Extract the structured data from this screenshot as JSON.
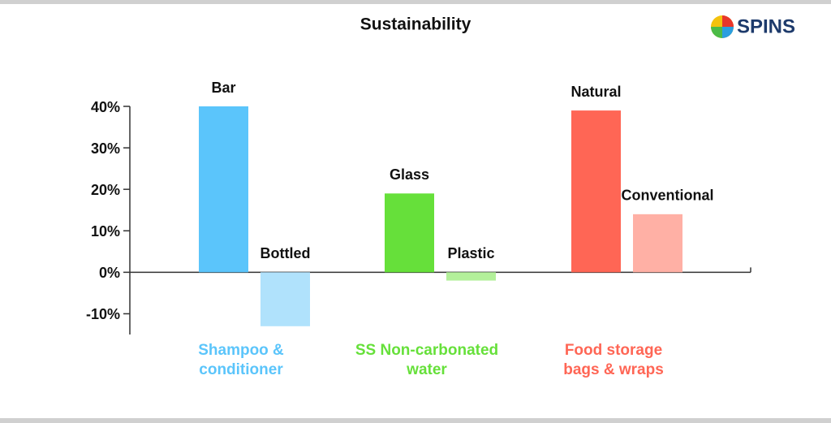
{
  "chart_data": {
    "type": "bar",
    "title": "Sustainability",
    "logo": "SPINS",
    "ylim": [
      -15,
      40
    ],
    "yticks": [
      {
        "value": -10,
        "label": "-10%"
      },
      {
        "value": 0,
        "label": "0%"
      },
      {
        "value": 10,
        "label": "10%"
      },
      {
        "value": 20,
        "label": "20%"
      },
      {
        "value": 30,
        "label": "30%"
      },
      {
        "value": 40,
        "label": "40%"
      }
    ],
    "groups": [
      {
        "label_lines": [
          "Shampoo &",
          "conditioner"
        ],
        "color": "#5bc5fb",
        "bars": [
          {
            "name": "Bar",
            "color": "#5bc5fb",
            "value": 40
          },
          {
            "name": "Bottled",
            "color": "#b0e2fc",
            "value": -13
          }
        ]
      },
      {
        "label_lines": [
          "SS Non-carbonated",
          "water"
        ],
        "color": "#66e03a",
        "bars": [
          {
            "name": "Glass",
            "color": "#66e03a",
            "value": 19
          },
          {
            "name": "Plastic",
            "color": "#b3f09a",
            "value": -2
          }
        ]
      },
      {
        "label_lines": [
          "Food storage",
          "bags & wraps"
        ],
        "color": "#ff6655",
        "bars": [
          {
            "name": "Natural",
            "color": "#ff6655",
            "value": 39
          },
          {
            "name": "Conventional",
            "color": "#ffb0a5",
            "value": 14
          }
        ]
      }
    ]
  }
}
